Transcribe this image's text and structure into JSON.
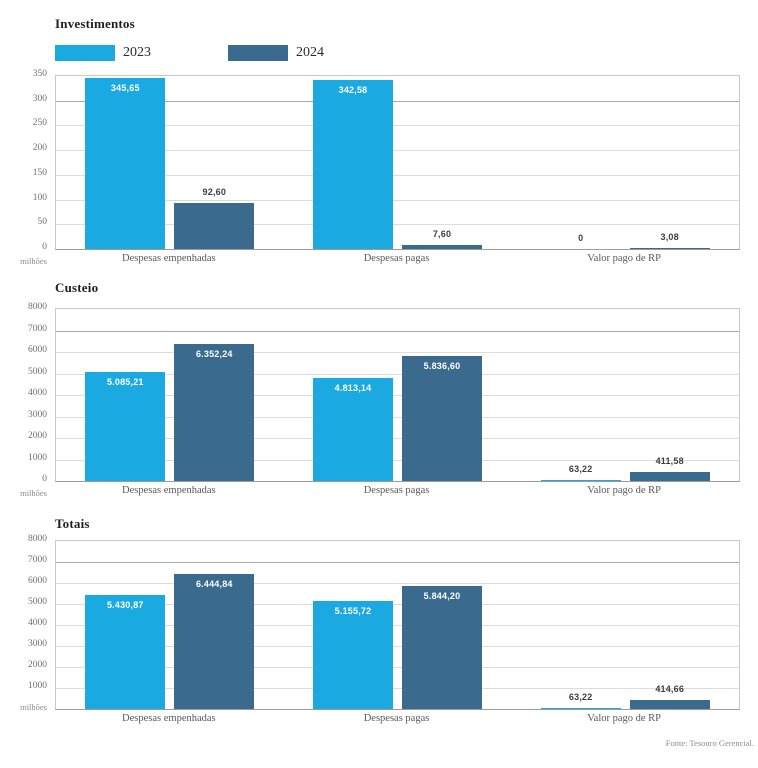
{
  "legend": {
    "items": [
      {
        "label": "2023",
        "color": "#1ba9e1"
      },
      {
        "label": "2024",
        "color": "#3a6a8e"
      }
    ]
  },
  "footer": "Fonte: Tesouro Gerencial.",
  "chart_data": [
    {
      "type": "bar",
      "title": "Investimentos",
      "unit": "milhões",
      "categories": [
        "Despesas empenhadas",
        "Despesas pagas",
        "Valor pago de RP"
      ],
      "series": [
        {
          "name": "2023",
          "color": "#1ba9e1",
          "values": [
            345.65,
            342.58,
            0
          ],
          "labels": [
            "345,65",
            "342,58",
            "0"
          ]
        },
        {
          "name": "2024",
          "color": "#3a6a8e",
          "values": [
            92.6,
            7.6,
            3.08
          ],
          "labels": [
            "92,60",
            "7,60",
            "3,08"
          ]
        }
      ],
      "ylim": [
        0,
        350
      ],
      "yticks": [
        350,
        300,
        250,
        200,
        150,
        100,
        50,
        0
      ],
      "grid": true,
      "legend_position": "top"
    },
    {
      "type": "bar",
      "title": "Custeio",
      "unit": "milhões",
      "categories": [
        "Despesas empenhadas",
        "Despesas pagas",
        "Valor pago de RP"
      ],
      "series": [
        {
          "name": "2023",
          "color": "#1ba9e1",
          "values": [
            5085.21,
            4813.14,
            63.22
          ],
          "labels": [
            "5.085,21",
            "4.813,14",
            "63,22"
          ]
        },
        {
          "name": "2024",
          "color": "#3a6a8e",
          "values": [
            6352.24,
            5836.6,
            411.58
          ],
          "labels": [
            "6.352,24",
            "5.836,60",
            "411,58"
          ]
        }
      ],
      "ylim": [
        0,
        8000
      ],
      "yticks": [
        8000,
        7000,
        6000,
        5000,
        4000,
        3000,
        2000,
        1000,
        0
      ],
      "grid": true,
      "legend_position": "none"
    },
    {
      "type": "bar",
      "title": "Totais",
      "unit": "milhões",
      "categories": [
        "Despesas empenhadas",
        "Despesas pagas",
        "Valor pago de RP"
      ],
      "series": [
        {
          "name": "2023",
          "color": "#1ba9e1",
          "values": [
            5430.87,
            5155.72,
            63.22
          ],
          "labels": [
            "5.430,87",
            "5.155,72",
            "63,22"
          ]
        },
        {
          "name": "2024",
          "color": "#3a6a8e",
          "values": [
            6444.84,
            5844.2,
            414.66
          ],
          "labels": [
            "6.444,84",
            "5.844,20",
            "414,66"
          ]
        }
      ],
      "ylim": [
        0,
        8000
      ],
      "yticks": [
        8000,
        7000,
        6000,
        5000,
        4000,
        3000,
        2000,
        1000
      ],
      "grid": true,
      "legend_position": "none"
    }
  ]
}
